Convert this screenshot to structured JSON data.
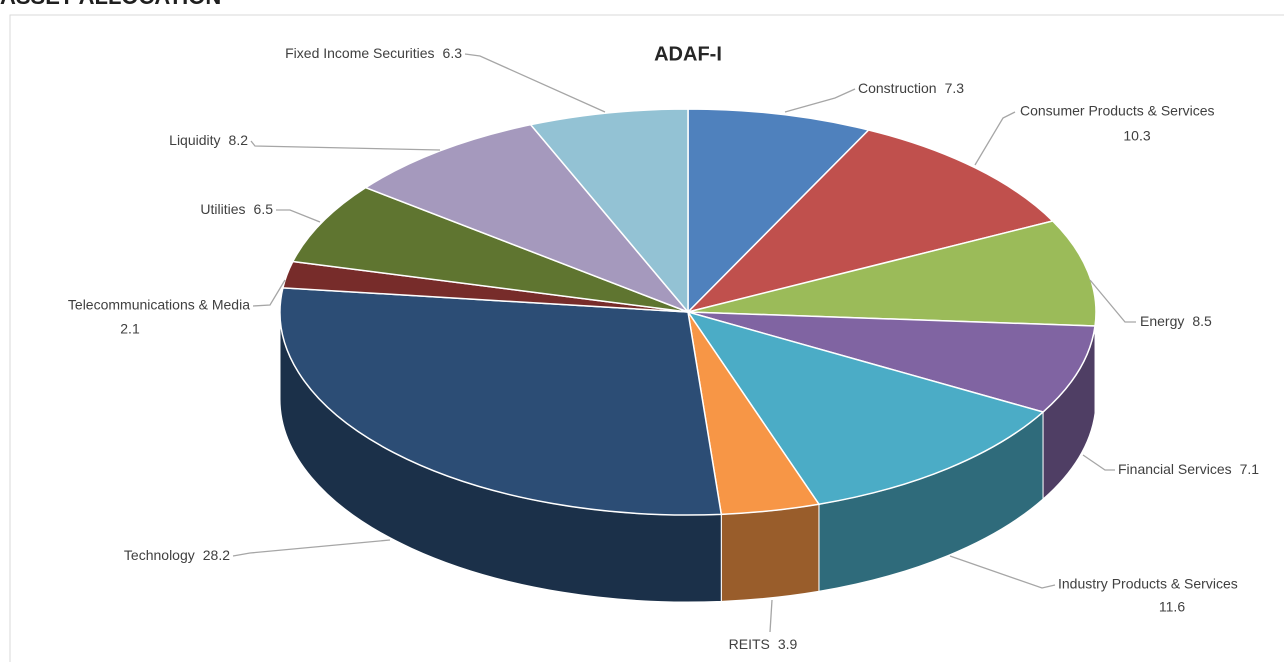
{
  "header": "ASSET ALLOCATION",
  "chart_data": {
    "type": "pie3d",
    "title": "ADAF-I",
    "categories": [
      "Construction",
      "Consumer Products & Services",
      "Energy",
      "Financial Services",
      "Industry Products & Services",
      "REITS",
      "Technology",
      "Telecommunications & Media",
      "Utilities",
      "Liquidity",
      "Fixed Income Securities"
    ],
    "values": [
      7.3,
      10.3,
      8.5,
      7.1,
      11.6,
      3.9,
      28.2,
      2.1,
      6.5,
      8.2,
      6.3
    ],
    "colors": [
      "#4f81bd",
      "#c0504d",
      "#9bbb59",
      "#8064a2",
      "#4bacc6",
      "#f79646",
      "#2c4d75",
      "#772c2a",
      "#5f7530",
      "#a599bd",
      "#93c2d4"
    ]
  }
}
